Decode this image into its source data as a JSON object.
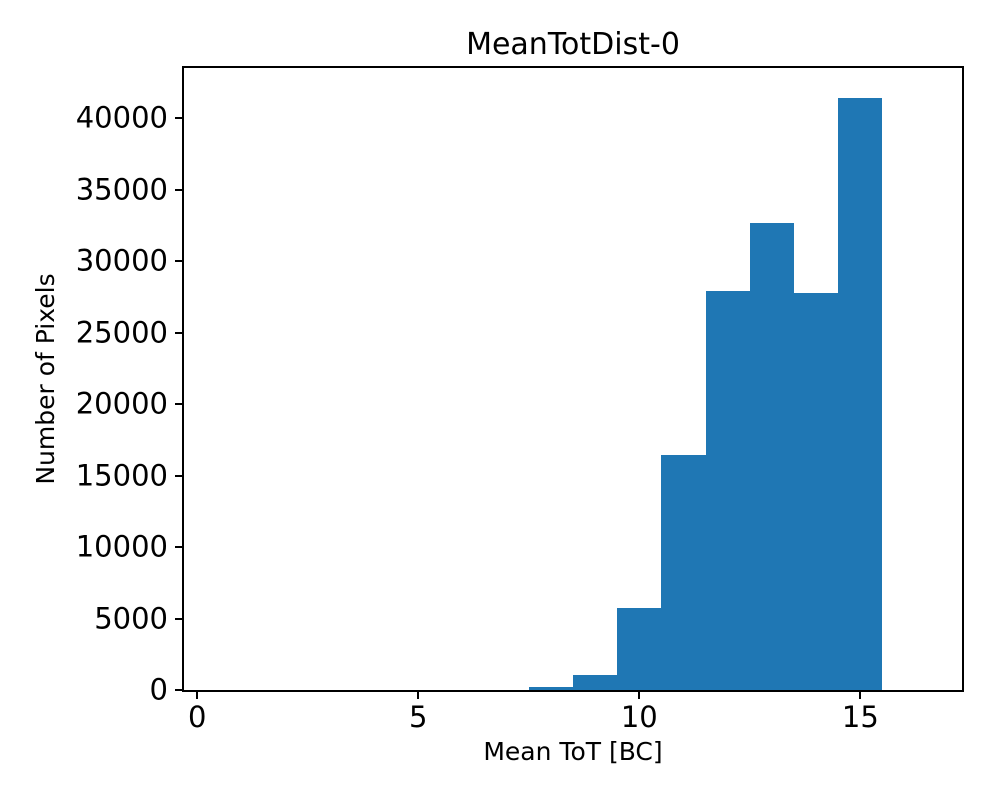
{
  "figure": {
    "background_color": "#ffffff",
    "text_color": "#000000"
  },
  "chart_data": {
    "type": "bar",
    "subtype": "histogram",
    "title": "MeanTotDist-0",
    "xlabel": "Mean ToT [BC]",
    "ylabel": "Number of Pixels",
    "bin_edges": [
      7.5,
      8.5,
      9.5,
      10.5,
      11.5,
      12.5,
      13.5,
      14.5,
      15.5
    ],
    "values": [
      210,
      1040,
      5770,
      16470,
      27900,
      32660,
      27750,
      41420
    ],
    "xlim": [
      -0.3,
      17.3
    ],
    "ylim": [
      0,
      43500
    ],
    "xticks": [
      0,
      5,
      10,
      15
    ],
    "yticks": [
      0,
      5000,
      10000,
      15000,
      20000,
      25000,
      30000,
      35000,
      40000
    ],
    "bar_color": "#1f77b4",
    "spine_color": "#000000",
    "grid": false,
    "legend": null
  }
}
